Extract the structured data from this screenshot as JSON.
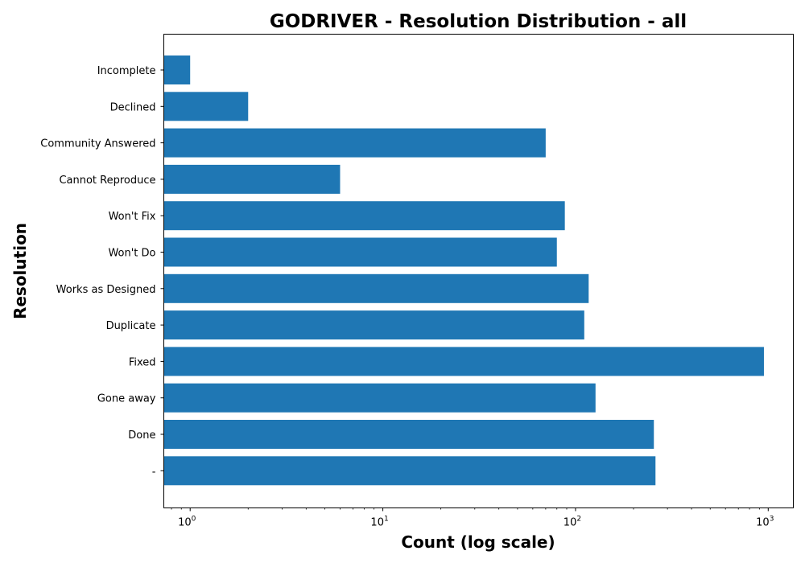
{
  "chart_data": {
    "type": "bar",
    "orientation": "horizontal",
    "title": "GODRIVER - Resolution Distribution - all",
    "xlabel": "Count (log scale)",
    "ylabel": "Resolution",
    "x_scale": "log",
    "xlim": [
      0.73,
      1350
    ],
    "x_ticks": [
      {
        "value": 1,
        "base": "10",
        "exp": "0"
      },
      {
        "value": 10,
        "base": "10",
        "exp": "1"
      },
      {
        "value": 100,
        "base": "10",
        "exp": "2"
      },
      {
        "value": 1000,
        "base": "10",
        "exp": "3"
      }
    ],
    "categories": [
      "Incomplete",
      "Declined",
      "Community Answered",
      "Cannot Reproduce",
      "Won't Fix",
      "Won't Do",
      "Works as Designed",
      "Duplicate",
      "Fixed",
      "Gone away",
      "Done",
      "-"
    ],
    "values": [
      1,
      2,
      70,
      6,
      88,
      80,
      117,
      111,
      950,
      127,
      255,
      260
    ],
    "bar_color": "#1f77b4",
    "grid": false,
    "legend": "none"
  }
}
